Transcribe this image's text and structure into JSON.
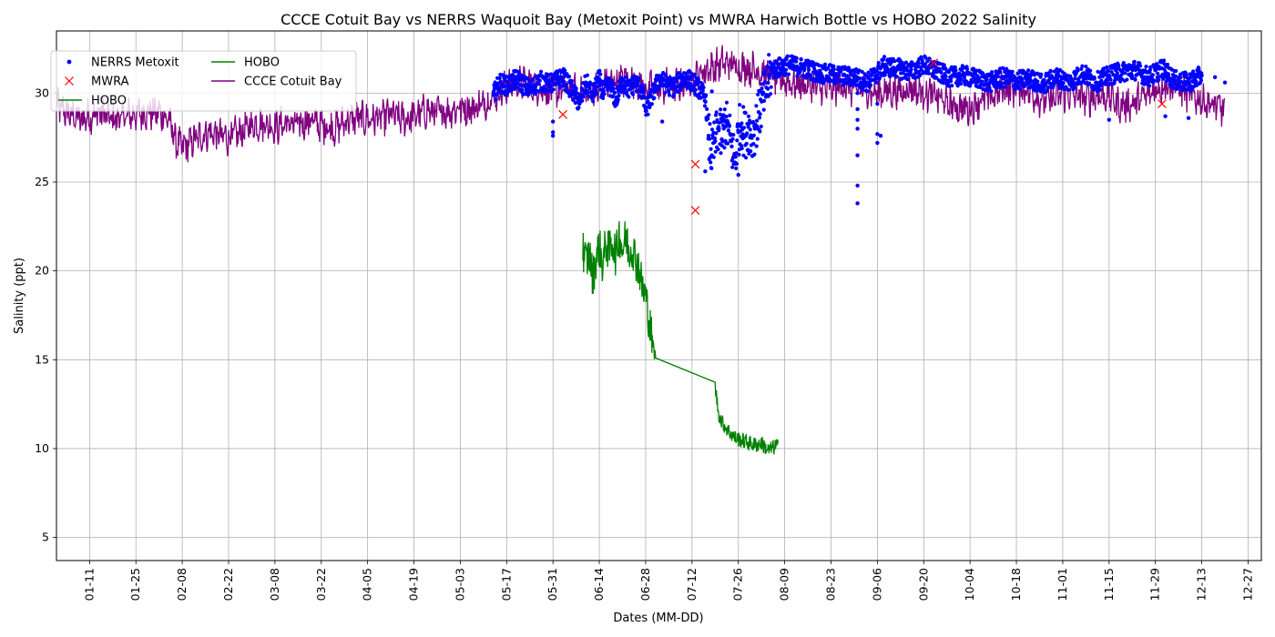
{
  "chart_data": {
    "type": "line",
    "title": "CCCE Cotuit Bay vs NERRS Waquoit Bay (Metoxit Point) vs MWRA Harwich Bottle vs HOBO 2022 Salinity",
    "xlabel": "Dates (MM-DD)",
    "ylabel": "Salinity (ppt)",
    "x_ticks": [
      "01-11",
      "01-25",
      "02-08",
      "02-22",
      "03-08",
      "03-22",
      "04-05",
      "04-19",
      "05-03",
      "05-17",
      "05-31",
      "06-14",
      "06-28",
      "07-12",
      "07-26",
      "08-09",
      "08-23",
      "09-06",
      "09-20",
      "10-04",
      "10-18",
      "11-01",
      "11-15",
      "11-29",
      "12-13",
      "12-27"
    ],
    "y_ticks": [
      5,
      10,
      15,
      20,
      25,
      30
    ],
    "xlim": [
      "2022-01-01",
      "2022-12-31"
    ],
    "ylim": [
      3.7,
      33.5
    ],
    "grid": true,
    "legend": {
      "placement": "top-left",
      "columns": 2
    },
    "series": [
      {
        "name": "NERRS Metoxit",
        "style": "dots",
        "color": "#0000ff",
        "points": [
          [
            "05-13",
            29.9
          ],
          [
            "05-15",
            30.6
          ],
          [
            "05-17",
            30.4
          ],
          [
            "05-20",
            30.8
          ],
          [
            "05-24",
            30.2
          ],
          [
            "05-27",
            30.7
          ],
          [
            "05-30",
            30.5
          ],
          [
            "06-03",
            30.9
          ],
          [
            "06-06",
            30.1
          ],
          [
            "06-08",
            29.4
          ],
          [
            "06-10",
            30.6
          ],
          [
            "06-12",
            29.9
          ],
          [
            "06-14",
            30.8
          ],
          [
            "06-15",
            30.0
          ],
          [
            "06-17",
            30.5
          ],
          [
            "06-19",
            29.6
          ],
          [
            "06-21",
            30.7
          ],
          [
            "06-23",
            30.2
          ],
          [
            "06-25",
            30.6
          ],
          [
            "06-27",
            30.1
          ],
          [
            "06-28",
            29.0
          ],
          [
            "07-02",
            30.8
          ],
          [
            "07-06",
            30.3
          ],
          [
            "07-10",
            30.9
          ],
          [
            "07-13",
            30.5
          ],
          [
            "07-16",
            29.8
          ],
          [
            "07-17",
            27.6
          ],
          [
            "07-18",
            26.5
          ],
          [
            "07-19",
            27.3
          ],
          [
            "07-20",
            28.1
          ],
          [
            "07-21",
            27.4
          ],
          [
            "07-22",
            28.4
          ],
          [
            "07-23",
            27.9
          ],
          [
            "07-24",
            27.0
          ],
          [
            "07-25",
            26.1
          ],
          [
            "07-26",
            27.8
          ],
          [
            "07-27",
            28.3
          ],
          [
            "07-28",
            27.6
          ],
          [
            "07-29",
            28.1
          ],
          [
            "07-30",
            27.5
          ],
          [
            "07-31",
            28.0
          ],
          [
            "08-05",
            31.3
          ],
          [
            "08-10",
            31.6
          ],
          [
            "08-15",
            31.4
          ],
          [
            "08-20",
            31.1
          ],
          [
            "08-25",
            31.0
          ],
          [
            "08-30",
            30.9
          ],
          [
            "09-03",
            30.6
          ],
          [
            "09-08",
            31.5
          ],
          [
            "09-12",
            31.4
          ],
          [
            "09-16",
            31.2
          ],
          [
            "09-20",
            31.6
          ],
          [
            "09-24",
            31.2
          ],
          [
            "09-28",
            30.9
          ],
          [
            "10-02",
            31.0
          ],
          [
            "10-06",
            30.8
          ],
          [
            "10-10",
            30.6
          ],
          [
            "10-14",
            30.9
          ],
          [
            "10-18",
            30.7
          ],
          [
            "10-22",
            30.8
          ],
          [
            "10-26",
            30.5
          ],
          [
            "10-30",
            30.9
          ],
          [
            "11-03",
            30.6
          ],
          [
            "11-07",
            31.1
          ],
          [
            "11-11",
            30.6
          ],
          [
            "11-15",
            31.0
          ],
          [
            "11-19",
            31.2
          ],
          [
            "11-23",
            31.3
          ],
          [
            "11-27",
            30.9
          ],
          [
            "12-01",
            31.4
          ],
          [
            "12-05",
            30.7
          ],
          [
            "12-09",
            30.6
          ],
          [
            "12-13",
            31.0
          ],
          [
            "12-17",
            30.9
          ],
          [
            "12-20",
            30.6
          ],
          [
            "05-31",
            28.4
          ],
          [
            "05-31",
            27.8
          ],
          [
            "05-31",
            27.6
          ],
          [
            "07-03",
            28.4
          ],
          [
            "07-16",
            25.6
          ],
          [
            "07-18",
            30.1
          ],
          [
            "07-26",
            25.4
          ],
          [
            "08-31",
            30.0
          ],
          [
            "08-31",
            29.1
          ],
          [
            "08-31",
            28.5
          ],
          [
            "08-31",
            28.0
          ],
          [
            "08-31",
            26.5
          ],
          [
            "08-31",
            24.8
          ],
          [
            "08-31",
            23.8
          ],
          [
            "09-06",
            29.4
          ],
          [
            "09-06",
            27.7
          ],
          [
            "09-06",
            27.2
          ],
          [
            "09-07",
            27.6
          ],
          [
            "11-15",
            28.5
          ],
          [
            "12-02",
            28.7
          ],
          [
            "12-09",
            28.6
          ]
        ]
      },
      {
        "name": "MWRA",
        "style": "x-markers",
        "color": "#ff0000",
        "points": [
          [
            "06-03",
            28.8
          ],
          [
            "07-13",
            26.0
          ],
          [
            "07-13",
            23.4
          ],
          [
            "09-23",
            31.7
          ],
          [
            "12-01",
            29.4
          ]
        ]
      },
      {
        "name": "HOBO",
        "style": "line",
        "color": "#008000",
        "points": [
          [
            "06-09",
            21.3
          ],
          [
            "06-10",
            20.5
          ],
          [
            "06-11",
            21.0
          ],
          [
            "06-12",
            19.6
          ],
          [
            "06-13",
            20.7
          ],
          [
            "06-14",
            21.4
          ],
          [
            "06-15",
            20.3
          ],
          [
            "06-16",
            21.6
          ],
          [
            "06-17",
            21.0
          ],
          [
            "06-18",
            21.8
          ],
          [
            "06-19",
            20.8
          ],
          [
            "06-20",
            22.1
          ],
          [
            "06-21",
            21.2
          ],
          [
            "06-22",
            21.9
          ],
          [
            "06-23",
            21.1
          ],
          [
            "06-24",
            21.4
          ],
          [
            "06-25",
            20.6
          ],
          [
            "06-26",
            20.2
          ],
          [
            "06-27",
            19.0
          ],
          [
            "06-28",
            18.6
          ],
          [
            "06-29",
            17.3
          ],
          [
            "06-30",
            16.0
          ],
          [
            "07-01",
            15.1
          ],
          [
            "07-19",
            13.5
          ],
          [
            "07-20",
            12.0
          ],
          [
            "07-21",
            11.5
          ],
          [
            "07-23",
            11.0
          ],
          [
            "07-25",
            10.6
          ],
          [
            "07-28",
            10.4
          ],
          [
            "07-31",
            10.2
          ],
          [
            "08-02",
            10.3
          ],
          [
            "08-04",
            9.9
          ],
          [
            "08-06",
            10.1
          ],
          [
            "08-07",
            10.3
          ]
        ]
      },
      {
        "name": "CCCE Cotuit Bay",
        "style": "line",
        "color": "#800080",
        "points": [
          [
            "01-01",
            29.3
          ],
          [
            "01-05",
            28.8
          ],
          [
            "01-08",
            28.5
          ],
          [
            "01-11",
            28.7
          ],
          [
            "01-15",
            28.9
          ],
          [
            "01-18",
            28.5
          ],
          [
            "01-22",
            28.7
          ],
          [
            "01-25",
            28.8
          ],
          [
            "01-29",
            28.9
          ],
          [
            "02-01",
            28.9
          ],
          [
            "02-04",
            28.5
          ],
          [
            "02-06",
            27.3
          ],
          [
            "02-08",
            26.9
          ],
          [
            "02-12",
            27.4
          ],
          [
            "02-16",
            27.8
          ],
          [
            "02-19",
            27.6
          ],
          [
            "02-22",
            27.5
          ],
          [
            "02-26",
            27.8
          ],
          [
            "03-01",
            28.2
          ],
          [
            "03-05",
            28.3
          ],
          [
            "03-08",
            28.1
          ],
          [
            "03-12",
            28.3
          ],
          [
            "03-15",
            28.2
          ],
          [
            "03-19",
            28.5
          ],
          [
            "03-22",
            28.2
          ],
          [
            "03-26",
            28.0
          ],
          [
            "03-29",
            28.4
          ],
          [
            "04-02",
            28.6
          ],
          [
            "04-05",
            28.5
          ],
          [
            "04-09",
            28.6
          ],
          [
            "04-12",
            28.8
          ],
          [
            "04-16",
            28.5
          ],
          [
            "04-19",
            28.7
          ],
          [
            "04-23",
            29.0
          ],
          [
            "04-26",
            28.9
          ],
          [
            "04-30",
            29.0
          ],
          [
            "05-03",
            29.2
          ],
          [
            "05-06",
            29.1
          ],
          [
            "05-10",
            29.4
          ],
          [
            "05-13",
            29.8
          ],
          [
            "05-17",
            30.3
          ],
          [
            "05-20",
            30.6
          ],
          [
            "05-24",
            30.5
          ],
          [
            "05-28",
            30.2
          ],
          [
            "05-31",
            30.1
          ],
          [
            "06-04",
            30.3
          ],
          [
            "06-07",
            30.1
          ],
          [
            "06-10",
            30.0
          ],
          [
            "06-14",
            30.3
          ],
          [
            "06-17",
            30.6
          ],
          [
            "06-21",
            30.7
          ],
          [
            "06-24",
            30.8
          ],
          [
            "06-28",
            30.3
          ],
          [
            "07-01",
            30.3
          ],
          [
            "07-05",
            30.4
          ],
          [
            "07-08",
            30.4
          ],
          [
            "07-12",
            30.6
          ],
          [
            "07-15",
            31.2
          ],
          [
            "07-19",
            31.5
          ],
          [
            "07-22",
            31.7
          ],
          [
            "07-26",
            31.5
          ],
          [
            "07-29",
            31.4
          ],
          [
            "08-02",
            31.2
          ],
          [
            "08-05",
            31.0
          ],
          [
            "08-09",
            30.7
          ],
          [
            "08-12",
            30.5
          ],
          [
            "08-16",
            30.5
          ],
          [
            "08-19",
            30.4
          ],
          [
            "08-23",
            30.2
          ],
          [
            "08-26",
            30.4
          ],
          [
            "08-30",
            30.2
          ],
          [
            "09-02",
            30.2
          ],
          [
            "09-06",
            30.0
          ],
          [
            "09-09",
            30.1
          ],
          [
            "09-13",
            30.1
          ],
          [
            "09-16",
            30.3
          ],
          [
            "09-20",
            30.0
          ],
          [
            "09-23",
            29.9
          ],
          [
            "09-27",
            29.4
          ],
          [
            "09-30",
            29.2
          ],
          [
            "10-04",
            29.1
          ],
          [
            "10-07",
            29.6
          ],
          [
            "10-11",
            29.8
          ],
          [
            "10-14",
            30.3
          ],
          [
            "10-18",
            30.2
          ],
          [
            "10-21",
            30.2
          ],
          [
            "10-25",
            29.7
          ],
          [
            "10-28",
            29.6
          ],
          [
            "11-01",
            29.9
          ],
          [
            "11-04",
            30.0
          ],
          [
            "11-08",
            29.7
          ],
          [
            "11-11",
            29.8
          ],
          [
            "11-15",
            29.9
          ],
          [
            "11-18",
            29.3
          ],
          [
            "11-22",
            29.4
          ],
          [
            "11-25",
            29.7
          ],
          [
            "11-29",
            30.2
          ],
          [
            "12-02",
            30.5
          ],
          [
            "12-06",
            30.3
          ],
          [
            "12-09",
            29.9
          ],
          [
            "12-13",
            29.6
          ],
          [
            "12-16",
            29.3
          ],
          [
            "12-20",
            29.1
          ]
        ]
      }
    ]
  }
}
